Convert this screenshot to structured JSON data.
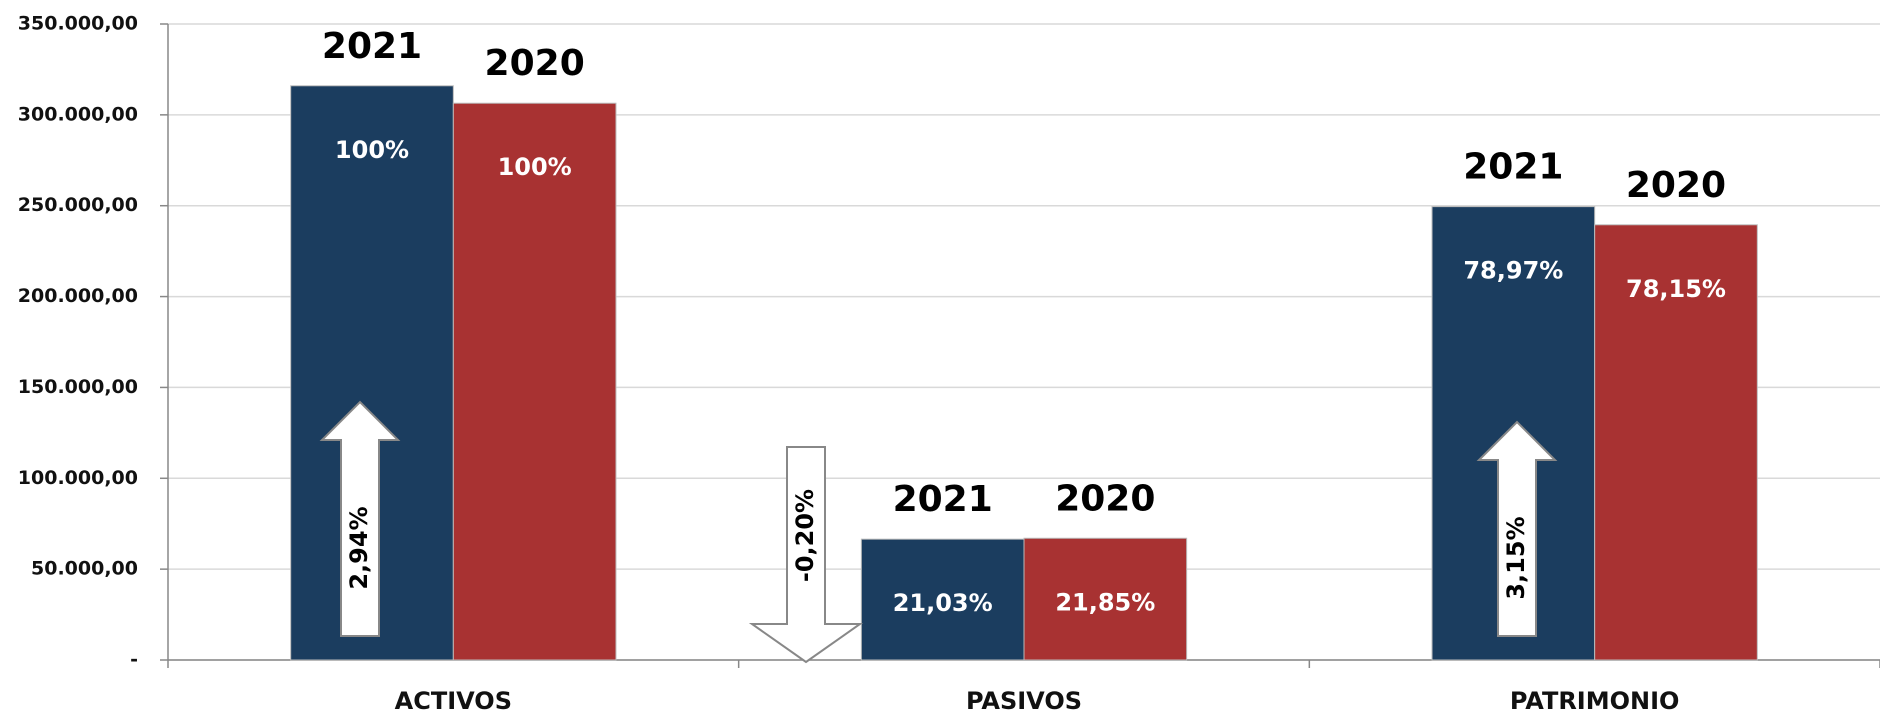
{
  "chart_data": {
    "type": "bar",
    "categories": [
      "ACTIVOS",
      "PASIVOS",
      "PATRIMONIO"
    ],
    "series": [
      {
        "name": "2021",
        "color": "#1b3d5f",
        "values": [
          316000,
          66500,
          249500
        ],
        "value_labels": [
          "100%",
          "21,03%",
          "78,97%"
        ]
      },
      {
        "name": "2020",
        "color": "#a83232",
        "values": [
          306400,
          67000,
          239500
        ],
        "value_labels": [
          "100%",
          "21,85%",
          "78,15%"
        ]
      }
    ],
    "ylim": [
      0,
      350000
    ],
    "yticks": [
      {
        "value": 0,
        "label": "-"
      },
      {
        "value": 50000,
        "label": "50.000,00"
      },
      {
        "value": 100000,
        "label": "100.000,00"
      },
      {
        "value": 150000,
        "label": "150.000,00"
      },
      {
        "value": 200000,
        "label": "200.000,00"
      },
      {
        "value": 250000,
        "label": "250.000,00"
      },
      {
        "value": 300000,
        "label": "300.000,00"
      },
      {
        "value": 350000,
        "label": "350.000,00"
      }
    ],
    "grid": true,
    "annotations": [
      {
        "text": "2,94%",
        "direction": "up"
      },
      {
        "text": "-0,20%",
        "direction": "down"
      },
      {
        "text": "3,15%",
        "direction": "up"
      }
    ]
  }
}
